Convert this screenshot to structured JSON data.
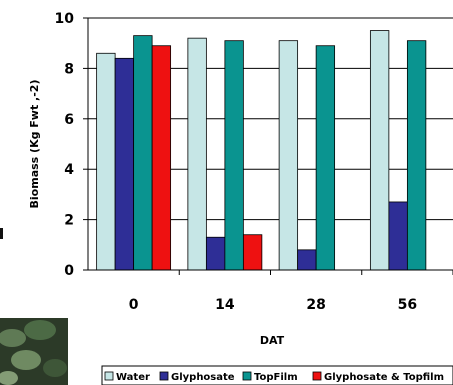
{
  "chart_data": {
    "type": "bar",
    "categories": [
      "0",
      "14",
      "28",
      "56"
    ],
    "series": [
      {
        "name": "Water",
        "color": "#c6e6e6",
        "values": [
          8.6,
          9.2,
          9.1,
          9.5
        ]
      },
      {
        "name": "Glyphosate",
        "color": "#2e2e96",
        "values": [
          8.4,
          1.3,
          0.8,
          2.7
        ]
      },
      {
        "name": "TopFilm",
        "color": "#0a9490",
        "values": [
          9.3,
          9.1,
          8.9,
          9.1
        ]
      },
      {
        "name": "Glyphosate & Topfilm",
        "color": "#ee1111",
        "values": [
          8.9,
          1.4,
          null,
          null
        ]
      }
    ],
    "xlabel": "DAT",
    "ylabel": "Biomass (Kg Fwt ,-2)",
    "ylim": [
      0,
      10
    ],
    "yticks": [
      "0",
      "2",
      "4",
      "6",
      "8",
      "10"
    ],
    "grid": true,
    "legend_position": "bottom"
  }
}
